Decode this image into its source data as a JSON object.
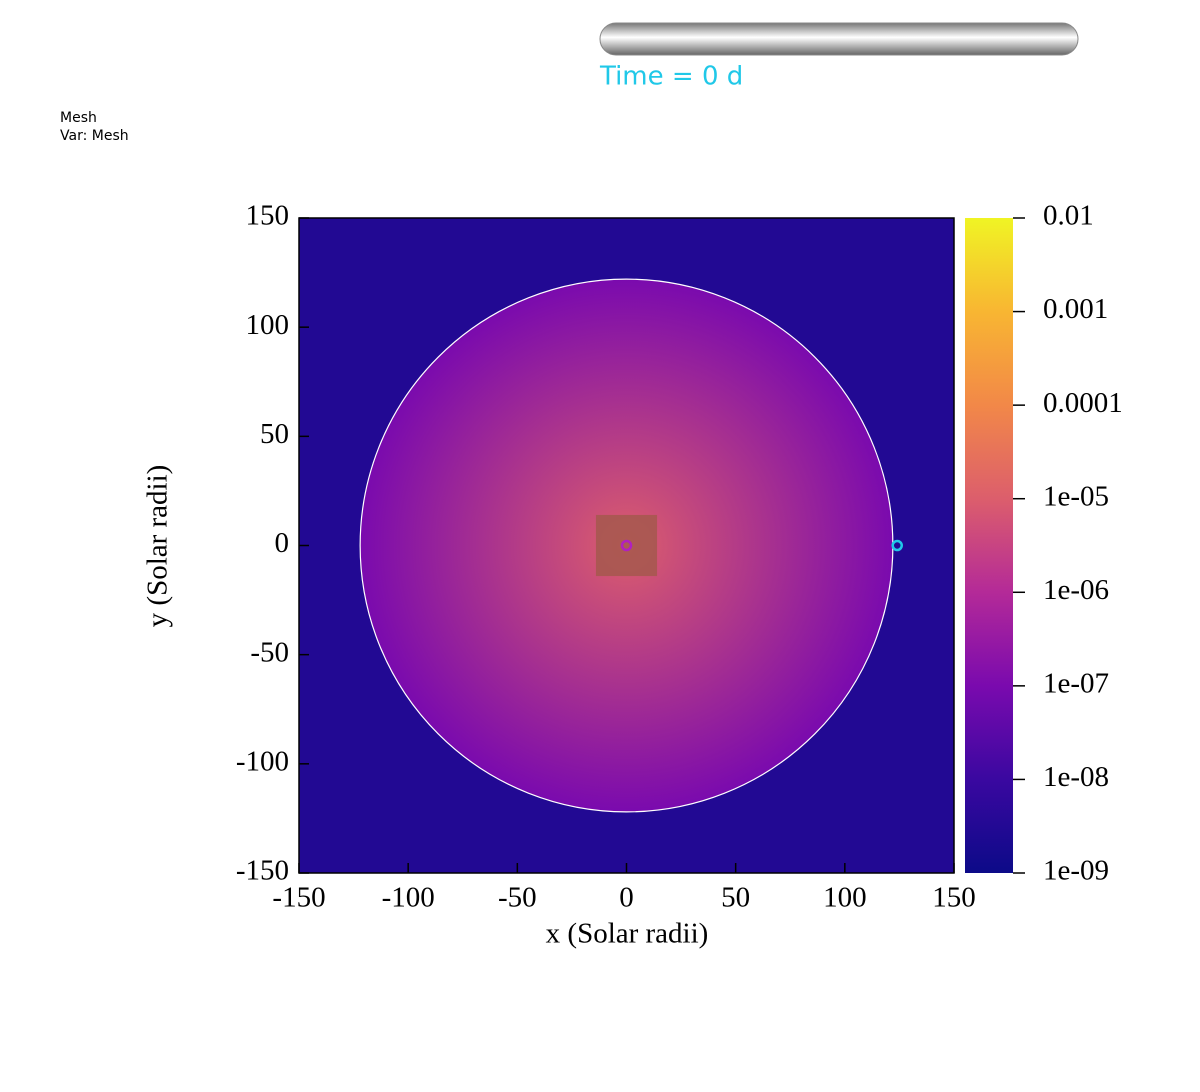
{
  "chart_data": {
    "type": "pseudocolor",
    "header": {
      "plot": "Mesh",
      "variable": "Var: Mesh",
      "time": "Time = 0 d"
    },
    "xlabel": "x (Solar radii)",
    "ylabel": "y (Solar radii)",
    "xlim": [
      -150,
      150
    ],
    "ylim": [
      -150,
      150
    ],
    "xticks": [
      -150,
      -100,
      -50,
      0,
      50,
      100,
      150
    ],
    "yticks": [
      -150,
      -100,
      -50,
      0,
      50,
      100,
      150
    ],
    "background_value": 3e-09,
    "disc": {
      "radius": 122,
      "center_value": 1e-05,
      "edge_value": 1e-07,
      "outline": "#ffffff"
    },
    "box": {
      "xlim": [
        -14,
        14
      ],
      "ylim": [
        -14,
        14
      ],
      "color": "#a4584e"
    },
    "points": [
      {
        "x": 0,
        "y": 0,
        "color": "#b020c0"
      },
      {
        "x": 124,
        "y": 0,
        "color": "#20c8e8"
      }
    ],
    "colorbar": {
      "log": true,
      "clim": [
        1e-09,
        0.01
      ],
      "ticks": [
        {
          "value": 1e-09,
          "label": "1e-09"
        },
        {
          "value": 1e-08,
          "label": "1e-08"
        },
        {
          "value": 1e-07,
          "label": "1e-07"
        },
        {
          "value": 1e-06,
          "label": "1e-06"
        },
        {
          "value": 1e-05,
          "label": "1e-05"
        },
        0.0001,
        0.001,
        0.01
      ],
      "colormap": [
        "#0c0a88",
        "#3a08a0",
        "#7a0aae",
        "#b42a98",
        "#dc5e6c",
        "#f28848",
        "#f8b632",
        "#f0f424"
      ]
    }
  }
}
